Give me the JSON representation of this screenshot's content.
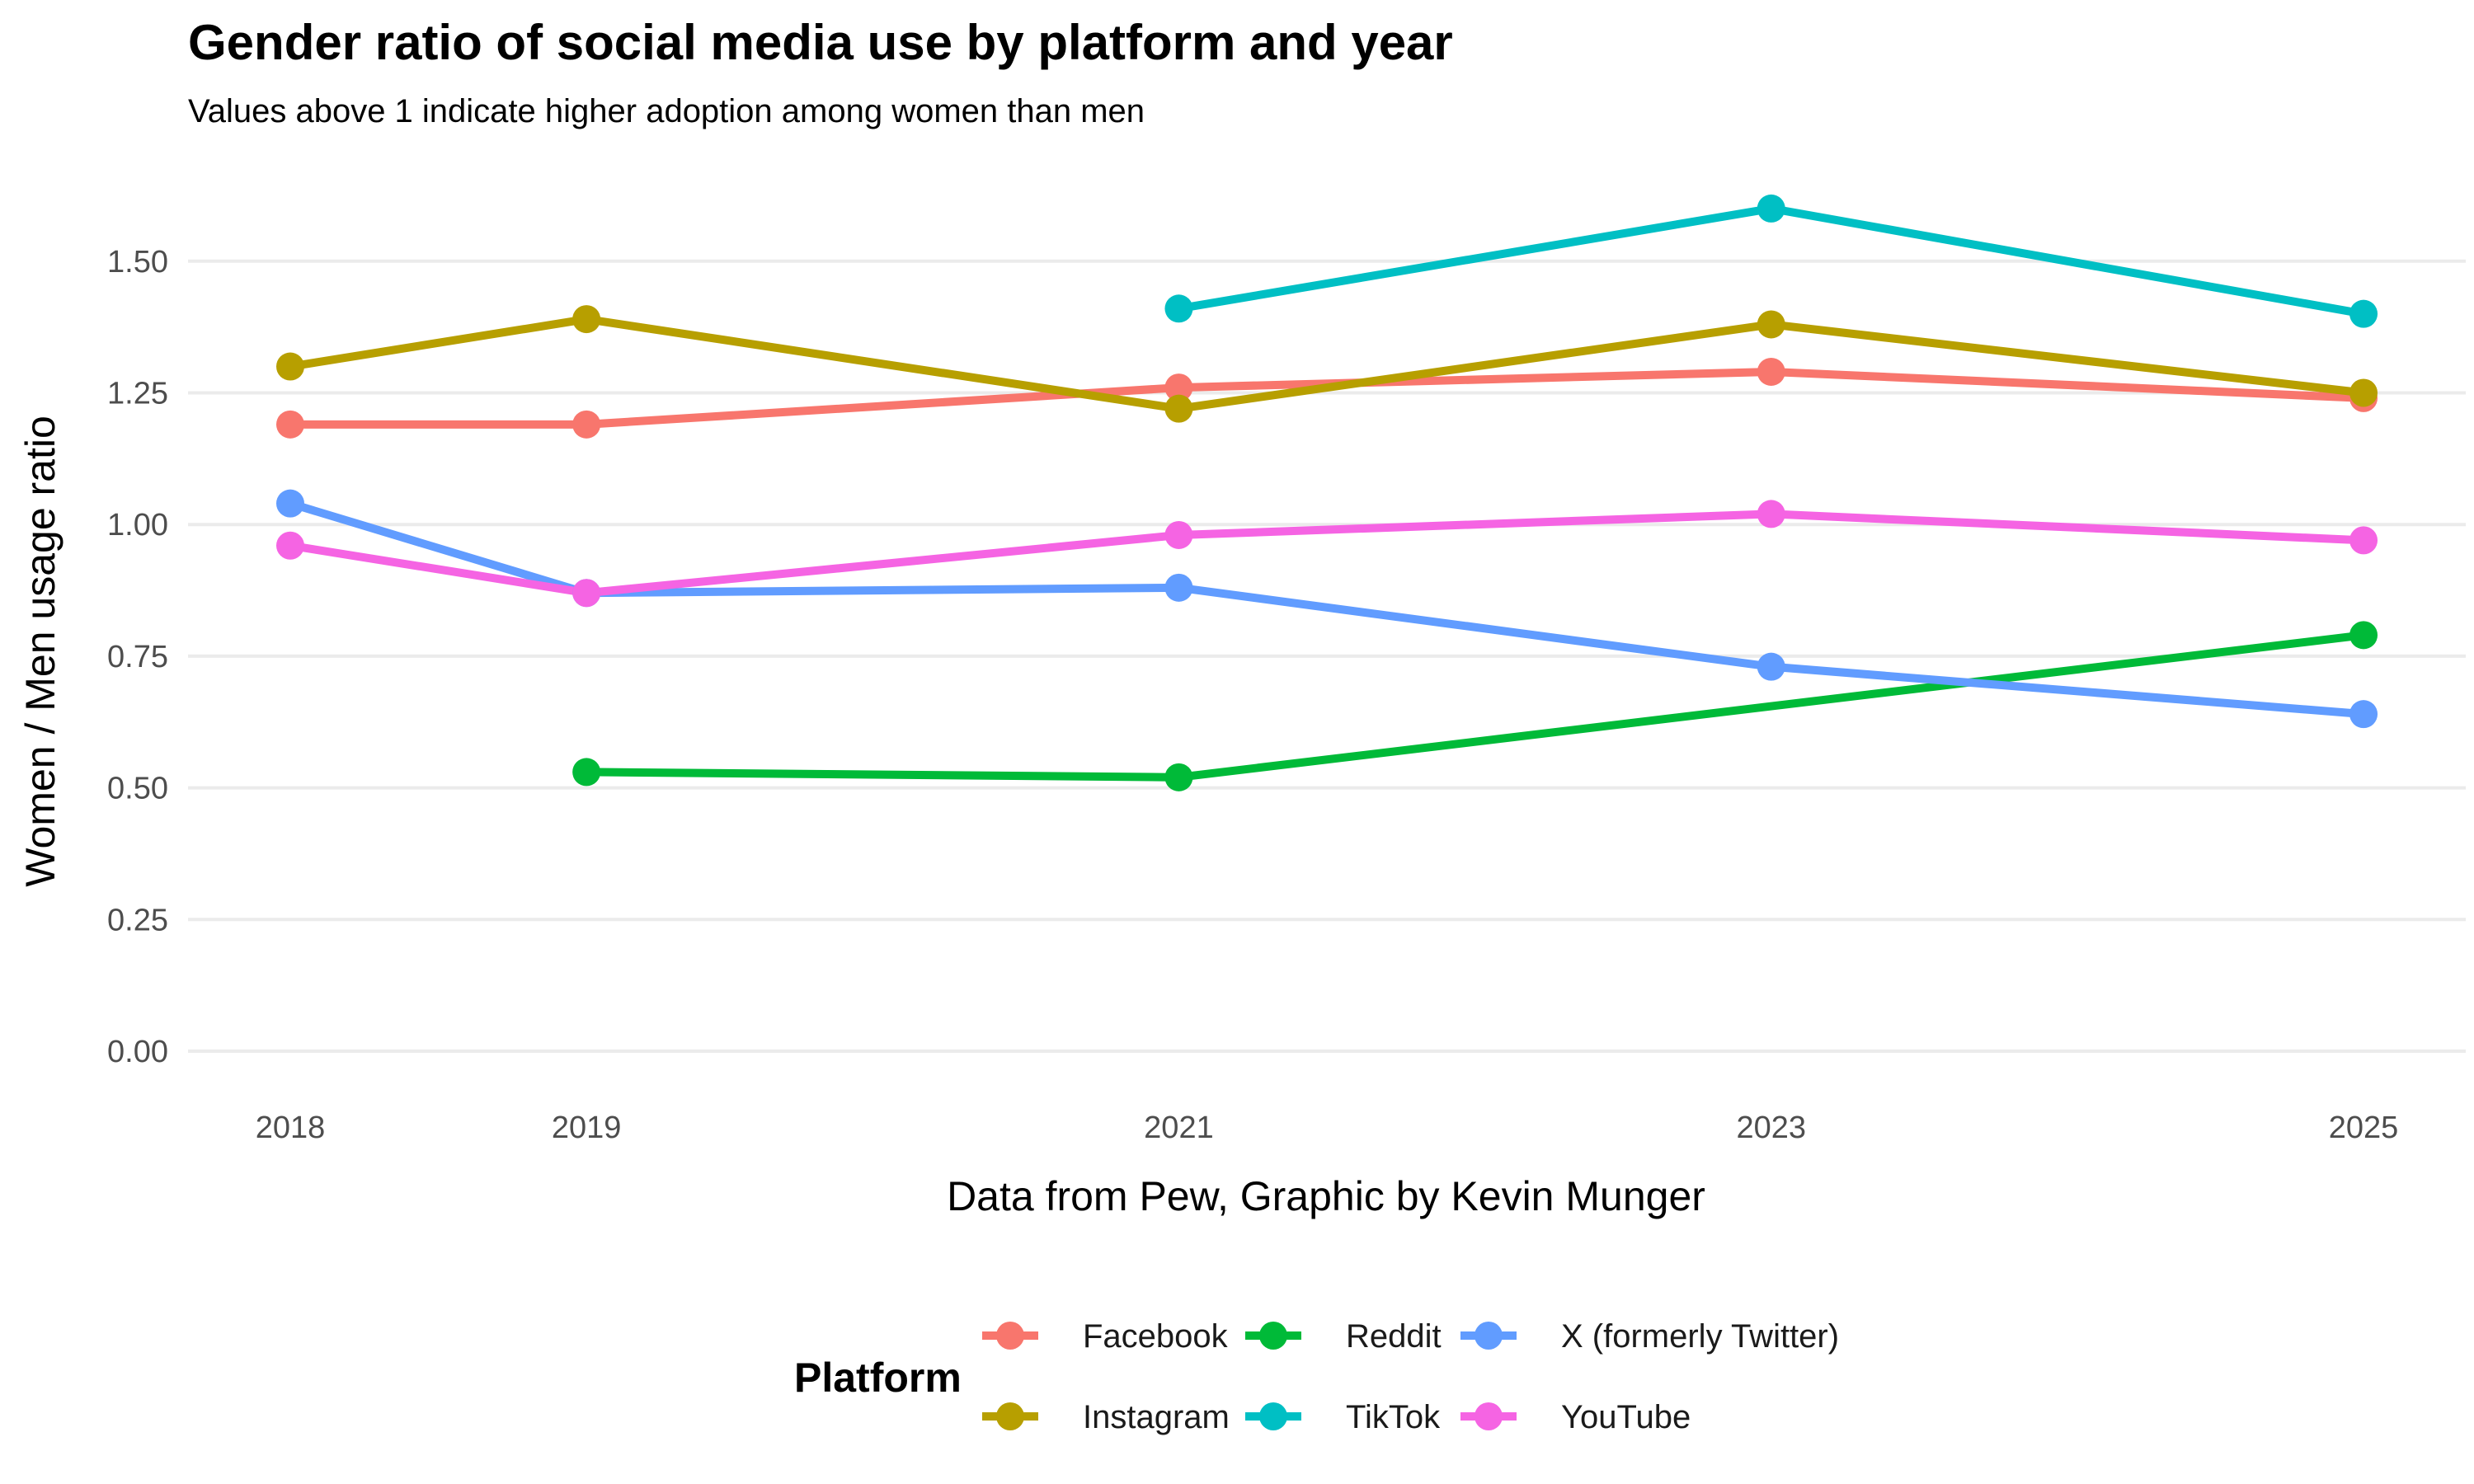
{
  "chart_data": {
    "type": "line",
    "title": "Gender ratio of social media use by platform and year",
    "subtitle": "Values above 1 indicate higher adoption among women than men",
    "xlabel": "Data from Pew, Graphic by Kevin Munger",
    "ylabel": "Women / Men usage ratio",
    "x": [
      2018,
      2019,
      2021,
      2023,
      2025
    ],
    "x_ticks": [
      "2018",
      "2019",
      "2021",
      "2023",
      "2025"
    ],
    "ylim": [
      0,
      1.6
    ],
    "y_ticks": [
      "0.00",
      "0.25",
      "0.50",
      "0.75",
      "1.00",
      "1.25",
      "1.50"
    ],
    "y_tick_values": [
      0,
      0.25,
      0.5,
      0.75,
      1.0,
      1.25,
      1.5
    ],
    "series": [
      {
        "name": "Facebook",
        "color": "#F8766D",
        "values": [
          1.19,
          1.19,
          1.26,
          1.29,
          1.24
        ]
      },
      {
        "name": "Instagram",
        "color": "#B79F00",
        "values": [
          1.3,
          1.39,
          1.22,
          1.38,
          1.25
        ]
      },
      {
        "name": "Reddit",
        "color": "#00BA38",
        "values": [
          null,
          0.53,
          0.52,
          null,
          0.79
        ]
      },
      {
        "name": "TikTok",
        "color": "#00BFC4",
        "values": [
          null,
          null,
          1.41,
          1.6,
          1.4
        ]
      },
      {
        "name": "X (formerly Twitter)",
        "color": "#619CFF",
        "values": [
          1.04,
          0.87,
          0.88,
          0.73,
          0.64
        ]
      },
      {
        "name": "YouTube",
        "color": "#F564E3",
        "values": [
          0.96,
          0.87,
          0.98,
          1.02,
          0.97
        ]
      }
    ],
    "legend": {
      "title": "Platform",
      "position": "bottom"
    }
  }
}
